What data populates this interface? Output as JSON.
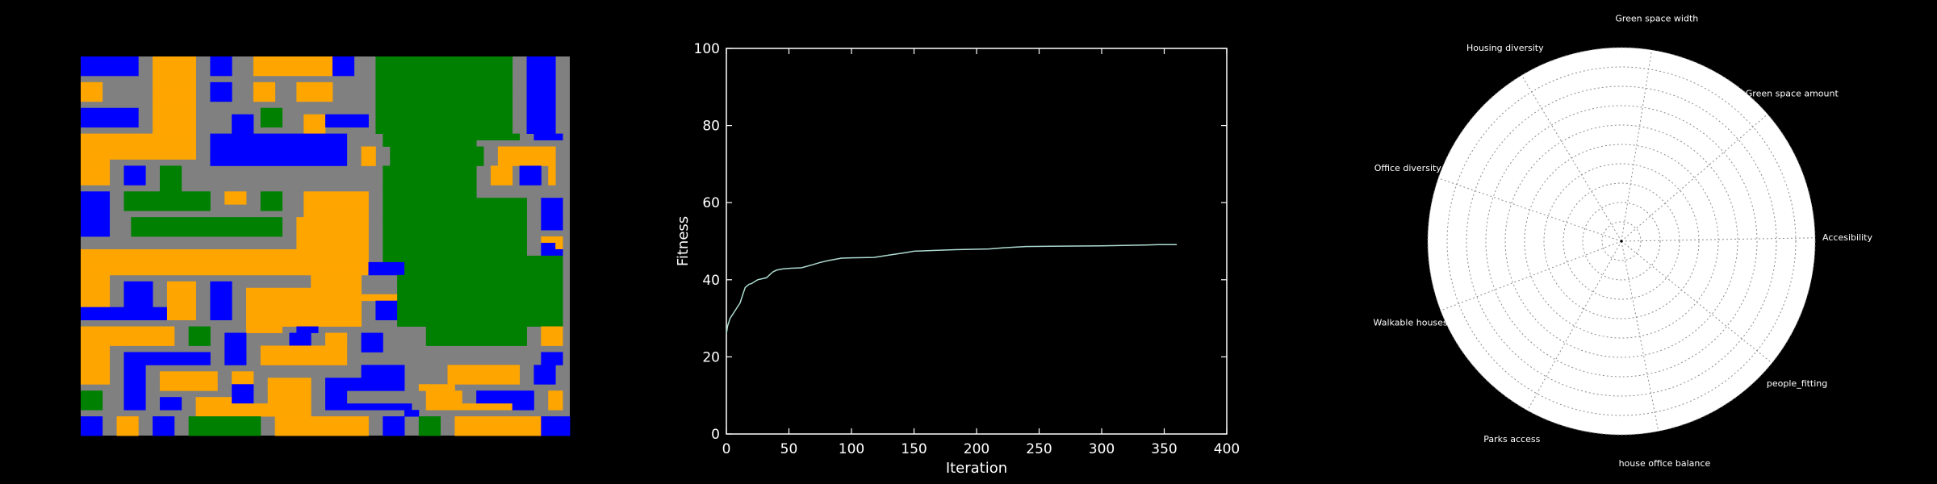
{
  "colors": {
    "background": "#000000",
    "road": "#808080",
    "housing": "#0000ff",
    "office": "#ffa500",
    "green": "#008000",
    "fitness_line": "#aedbd1",
    "radar_face": "#ffffff"
  },
  "grid_map": {
    "legend": {
      "R": "road",
      "B": "housing",
      "O": "office",
      "G": "green"
    },
    "rows": [
      "BBBBBBBBRROOOOOORRBBBRRROOOOOOOOOOOBBBRRRGGGGGGGGGGGGGGGGGGGRRBBBB",
      "BBBBBBBBRROOOOOORRBBBRRROOOOOOOOOOOBBBRRRGGGGGGGGGGGGGGGGGGGRRBBBB",
      "BBBBBBBBRROOOOOORRBBBRRROOOOOOOOOOOBBBRRRGGGGGGGGGGGGGGGGGGGRRBBBB",
      "RRRRRRRRRROOOOOORRRRRRRRRRRRRRRRRRRRRRRRRGGGGGGGGGGGGGGGGGGGRRBBBB",
      "OOORRRRRRROOOOOORRBBBRRROOORRROOOOORRRRRRGGGGGGGGGGGGGGGGGGGRRBBBB",
      "OOORRRRRRROOOOOORRBBBRRROOORRROOOOORRRRRRGGGGGGGGGGGGGGGGGGGRRBBBB",
      "OOORRRRRRROOOOOORRBBBRRROOORRROOOOORRRRRRGGGGGGGGGGGGGGGGGGGRRBBBB",
      "RRRRRRRRRROOOOOORRRRRRRRRRRRRRRRRRRRRRRRRGGGGGGGGGGGGGGGGGGGRRBBBB",
      "BBBBBBBBRROOOOOORRRRRRRRRGGGRRRRRRRRRRRRRGGGGGGGGGGGGGGGGGGGRRBBBB",
      "BBBBBBBBRROOOOOORRRRRBBBRGGGRRROOOBBBBBBRGGGGGGGGGGGGGGGGGGGRRBBBB",
      "BBBBBBBBRROOOOOORRRRRBBBRGGGRRROOOBBBBBBRGGGGGGGGGGGGGGGGGGGRRBBBB",
      "RRRRRRRRRROOOOOORRRRRBBBRRRRRRROOORRRRRRRGGGGGGGGGGGGGGGGGGGRRBBBB",
      "OOOOOOOOOOOOOOOORRBBBBBBBBBBBBBBBBBBBRRRRRGGGGGGGGGGGGGGGGGGGRRBBBB",
      "OOOOOOOOOOOOOOOORRBBBBBBBBBBBBBBBBBBBRRRRRGGGGGGGGGGGGGRRRRRRRRRRRR",
      "OOOOOOOOOOOOOOOORRBBBBBBBBBBBBBBBBBBBRROORRGGGGGGGGGGGGGRROOOOOOOO",
      "OOOOOOOOOOOOOOOORRBBBBBBBBBBBBBBBBBBBRROORRGGGGGGGGGGGGGRROOOOOOOO",
      "OOOORRRRRRRRRRRRRRBBBBBBBBBBBBBBBBBBBRROORRGGGGGGGGGGGGGRROOOOOOOO",
      "OOOORRBBBRRGGGRRRRRRRRRRRRRRRRRRRRRRRRRRRRGGGGGGGGGGGGGRROOORBBBRO",
      "OOOORRBBBRRGGGRRRRRRRRRRRRRRRRRRRRRRRRRRRRGGGGGGGGGGGGGRROOORBBBRO",
      "OOOORRBBBRRGGGRRRRRRRRRRRRRRRRRRRRRRRRRRRRGGGGGGGGGGGGGRROOORBBBRO",
      "RRRRRRRRRRRGGGRRRRRRRRRRRRRRRRRRRRRRRRRRRRGGGGGGGGGGGGGRRRRRRRRRRR",
      "BBBBRRGGGGGGGGGGGGRROOORRGGGRRROOOOOOOOORRGGGGGGGGGGGGGRRRRRRRRRRR",
      "BBBBRRGGGGGGGGGGGGRROOORRGGGRRROOOOOOOOORRGGGGGGGGGGGGGGGGGGGGRRBBB",
      "BBBBRRGGGGGGGGGGGGRRRRRRRGGGRRROOOOOOOOORRGGGGGGGGGGGGGGGGGGGGRRBBB",
      "BBBBRRRRRRRRRRRRRRRRRRRRRRRRRRROOOOOOOOORRGGGGGGGGGGGGGGGGGGGGRRBBB",
      "BBBBRRRGGGGGGGGGGGGGGGGGGGGGRROOOOOOOOOORRGGGGGGGGGGGGGGGGGGGGRRBBB",
      "BBBBRRRGGGGGGGGGGGGGGGGGGGGGRROOOOOOOOOORRGGGGGGGGGGGGGGGGGGGGRRBBB",
      "BBBBRRRGGGGGGGGGGGGGGGGGGGGGRROOOOOOOOOORRGGGGGGGGGGGGGGGGGGGGRRRRR",
      "RRRRRRRRRRRRRRRRRRRRRRRRRRRRRROOOOOOOOOORRGGGGGGGGGGGGGGGGGGGGRROOO",
      "RRRRRRRRRRRRRRRRRRRRRRRRRRRRRROOOOOOOOOORRGGGGGGGGGGGGGGGGGGGGRRBBO",
      "OOOOOOOOOOOOOOOOOOOOOOOOOOOOOOOOOOOOOOOORRGGGGGGGGGGGGGGGGGGGGRRBBB",
      "OOOOOOOOOOOOOOOOOOOOOOOOOOOOOOOOOOOOOOOORRGGGGGGGGGGGGGGGGGGGGGGGGG",
      "OOOOOOOOOOOOOOOOOOOOOOOOOOOOOOOOOOOOOOOOBBBBBGGGGGGGGGGGGGGGGGGGGGG",
      "OOOOOOOOOOOOOOOOOOOOOOOOOOOOOOOOOOOOOOOOBBBBBGGGGGGGGGGGGGGGGGGGGGG",
      "OOOORRRRRRRRRRRRRRRRRRRRRRRRRRRROOOOOOORRRRRGGGGGGGGGGGGGGGGGGGGGGG",
      "OOOORRBBBBRROOOORRBBBRRRRRRRRRRROOOOOOORRRRRGGGGGGGGGGGGGGGGGGGGGGG",
      "OOOORRBBBBRROOOORRBBBRROOOOOOOOOOOOOOOORRRRRGGGGGGGGGGGGGGGGGGGGGGG",
      "OOOORRBBBBRROOOORRBBBRROOOOOOOOOOOOOOOOOOOOOGGGGGGGGGGGGGGGGGGGGGGG",
      "OOOORRBBBBRROOOORRBBBRROOOOOOOOOOOOOOOORRBBBGGGGGGGGGGGGGGGGGGGGGGG",
      "BBBBBBBBBBBBOOOORRBBBRROOOOOOOOOOOOOOOORRBBBGGGGGGGGGGGGGGGGGGGGGGG",
      "BBBBBBBBBBBBOOOORRBBBRROOOOOOOOOOOOOOOORRBBBGGGGGGGGGGGGGGGGGGGGGGG",
      "RRRRRRRRRRRRRRRRRRRRRRROOOOOOOOOOOOOOOORRRRRGGGGGGGGGGGGGGGGGGGGGGG",
      "OOOOOOOOOOOOORRGGGRRRRROOOOORRBBBRRRRRRRRRRRRRRRGGGGGGGGGGGGGGRROOO",
      "OOOOOOOOOOOOORRGGGRRBBBRRRRRRBBBRROOORRBBBRRRRRRGGGGGGGGGGGGGGRROOO",
      "OOOOOOOOOOOOORRGGGRRBBBRRRRRRBBBRROOORRBBBRRRRRRGGGGGGGGGGGGGGRROOO",
      "OOOORRRRRRRRRRRRRRRRBBBRROOOOOOOOOOOORRBBBRRRRRRRRRRRRRRRRRRRRRRRRR",
      "OOOORRBBBBBBBBBBBBRRBBBRROOOOOOOOOOOORRRRRRRRRRRRRRRRRRRRRRRRRRRBBB",
      "OOOORRBBBBBBBBBBBBRRBBBRROOOOOOOOOOOORRRRRRRRRRRRRRRRRRRRRRRRRRRBBB",
      "OOOORRBBBRRRRRRRRRRRRRRRRRRRRRRRRRRRRRRBBBBBBRRRRRROOOOOOOOOORRBBB",
      "OOOORRBBBRROOOOOOOORROOORRRRRRRRRRRRRRRBBBBBBRRRRRROOOOOOOOOORRBBB",
      "OOOORRBBBRROOOOOOOORROOORROOOOOORRBBBBBBBBBBBRRRRRROOOOOOOOOORRBBB",
      "RRRRRRBBBRROOOOOOOORRBBBRROOOOOORRBBBBBBBBBBBRROOOOORRRRRRRRRRRRRR",
      "GGGRRRBBBRRRRRRRRRRRRBBBRROOOOOORRBBBRRRRRRRRRRROOOOORRBBBBBBBBRROO",
      "GGGRRRBBBRRBBBRROOOOOBBBRROOOOOORRBBBRRRRRRRRRRROOOOORRBBBBBBBBRROO",
      "GGGRRRBBBRRBBBRROOOOOOOOOOOOOOOORRBBBBBBBBBBBBRROOOOOOOOOOOOBBBRROO",
      "RRRRRRRRRRRRRRRROOOOOOOOOOOOOOOORRRRRRRRRRRRRBBRRRRRRRRRRRRRRRRRRRR",
      "BBBRROOORRBBBRRGGGGGGGGGGRROOOOOOOOOOOOORRBBBRRGGGRROOOOOOOOOOOOBBBB",
      "BBBRROOORRBBBRRGGGGGGGGGGRROOOOOOOOOOOOORRBBBRRGGGRROOOOOOOOOOOOBBBB",
      "BBBRROOORRBBBRRGGGGGGGGGGRROOOOOOOOOOOOORRBBBRRGGGRROOOOOOOOOOOOBBBB"
    ]
  },
  "chart_data": [
    {
      "type": "line",
      "title": "",
      "xlabel": "Iteration",
      "ylabel": "Fitness",
      "xlim": [
        0,
        400
      ],
      "ylim": [
        0,
        100
      ],
      "xticks": [
        "0",
        "50",
        "100",
        "150",
        "200",
        "250",
        "300",
        "350",
        "400"
      ],
      "yticks": [
        "0",
        "20",
        "40",
        "60",
        "80",
        "100"
      ],
      "grid": false,
      "series": [
        {
          "x": [
            0,
            1,
            3,
            5,
            8,
            11,
            13,
            15,
            18,
            20,
            25,
            32,
            37,
            40,
            45,
            52,
            60,
            70,
            75,
            82,
            92,
            100,
            118,
            132,
            143,
            150,
            165,
            183,
            210,
            222,
            238,
            260,
            300,
            335,
            345,
            360
          ],
          "y": [
            26,
            28,
            30,
            31,
            32.5,
            34,
            36,
            38,
            38.8,
            39,
            40,
            40.5,
            42,
            42.5,
            42.8,
            43,
            43.1,
            44,
            44.5,
            45,
            45.6,
            45.7,
            45.8,
            46.5,
            47,
            47.4,
            47.6,
            47.8,
            48,
            48.3,
            48.6,
            48.7,
            48.8,
            49,
            49.1,
            49.1
          ]
        }
      ]
    },
    {
      "type": "radar",
      "title": "",
      "axes": [
        "Green space width",
        "Green space amount",
        "Accesibility",
        "people_fitting",
        "house office balance",
        "Parks access",
        "Walkable houses",
        "Office diversity",
        "Housing diversity"
      ],
      "values": [
        0,
        0,
        0,
        0,
        0,
        0,
        0,
        0,
        0
      ],
      "rings": 10,
      "grid": true
    }
  ]
}
